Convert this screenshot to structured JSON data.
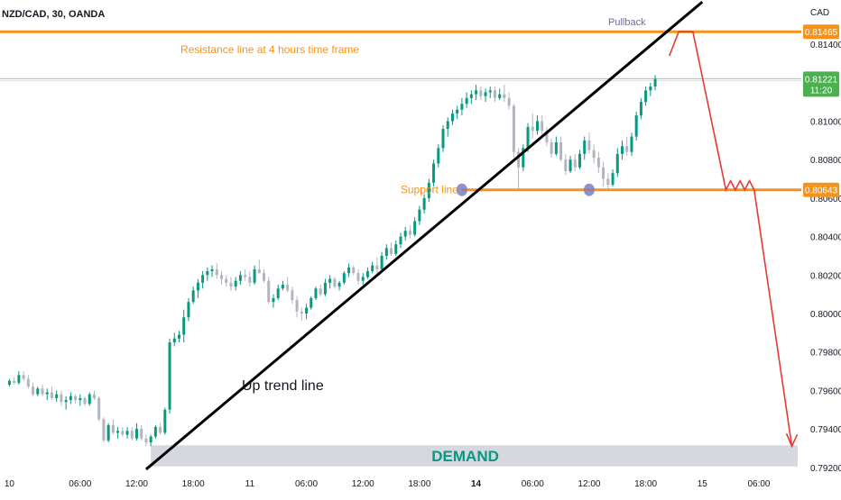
{
  "header": {
    "symbol": "NZD/CAD, 30, OANDA",
    "currency": "CAD"
  },
  "colors": {
    "up": "#089981",
    "down": "#b2b5be",
    "resistance": "#f7931a",
    "support": "#f7931a",
    "trendline": "#000000",
    "projection": "#e53935",
    "demand_zone": "#d1d4dc",
    "demand_text": "#089981",
    "price_line": "#4caf50",
    "pivot_marker": "#7e7fb8",
    "axis_text": "#131722",
    "price_badge": "#4caf50",
    "level_badge": "#f7931a"
  },
  "chart_data": {
    "type": "candlestick",
    "symbol": "NZD/CAD",
    "timeframe": "30",
    "source": "OANDA",
    "currency": "CAD",
    "y_ticks": [
      "0.81400",
      "0.81000",
      "0.80800",
      "0.80600",
      "0.80400",
      "0.80200",
      "0.80000",
      "0.79800",
      "0.79600",
      "0.79400",
      "0.79200"
    ],
    "y_tick_values": [
      0.814,
      0.81,
      0.808,
      0.806,
      0.804,
      0.802,
      0.8,
      0.798,
      0.796,
      0.794,
      0.792
    ],
    "ylim": [
      0.79185,
      0.8163
    ],
    "x_ticks": [
      "10",
      "06:00",
      "12:00",
      "18:00",
      "11",
      "06:00",
      "12:00",
      "18:00",
      "14",
      "06:00",
      "12:00",
      "18:00",
      "15",
      "06:00"
    ],
    "x_tick_index": [
      0,
      15,
      27,
      39,
      51,
      63,
      75,
      87,
      99,
      111,
      123,
      135,
      147,
      159
    ],
    "bold_x_ticks": [
      "14"
    ],
    "x_range": [
      -2,
      168
    ],
    "candle_count": 138,
    "candles_ohlc": [
      [
        0.7963,
        0.7966,
        0.7962,
        0.7965
      ],
      [
        0.7965,
        0.7967,
        0.7963,
        0.7964
      ],
      [
        0.7964,
        0.797,
        0.7963,
        0.7968
      ],
      [
        0.7968,
        0.797,
        0.7965,
        0.7966
      ],
      [
        0.7966,
        0.7968,
        0.7961,
        0.7962
      ],
      [
        0.7962,
        0.7964,
        0.7957,
        0.7958
      ],
      [
        0.7958,
        0.7962,
        0.7957,
        0.7961
      ],
      [
        0.7961,
        0.7963,
        0.7957,
        0.7958
      ],
      [
        0.7958,
        0.7961,
        0.7955,
        0.7959
      ],
      [
        0.7959,
        0.7962,
        0.7955,
        0.7956
      ],
      [
        0.7956,
        0.796,
        0.7954,
        0.7958
      ],
      [
        0.7958,
        0.796,
        0.7952,
        0.7954
      ],
      [
        0.7954,
        0.7957,
        0.795,
        0.7955
      ],
      [
        0.7955,
        0.7959,
        0.7953,
        0.7957
      ],
      [
        0.7957,
        0.7958,
        0.7953,
        0.7955
      ],
      [
        0.7955,
        0.7958,
        0.7952,
        0.7956
      ],
      [
        0.7956,
        0.7957,
        0.7952,
        0.7953
      ],
      [
        0.7953,
        0.7959,
        0.7952,
        0.7958
      ],
      [
        0.7958,
        0.796,
        0.7955,
        0.7956
      ],
      [
        0.7956,
        0.7957,
        0.7944,
        0.7945
      ],
      [
        0.7945,
        0.7946,
        0.7933,
        0.7934
      ],
      [
        0.7934,
        0.7943,
        0.7933,
        0.7942
      ],
      [
        0.7942,
        0.7945,
        0.7937,
        0.7938
      ],
      [
        0.7938,
        0.7941,
        0.7935,
        0.7939
      ],
      [
        0.7939,
        0.7941,
        0.7936,
        0.7937
      ],
      [
        0.7937,
        0.7941,
        0.7935,
        0.7939
      ],
      [
        0.7939,
        0.7941,
        0.7934,
        0.7935
      ],
      [
        0.7935,
        0.7943,
        0.7934,
        0.794
      ],
      [
        0.794,
        0.7942,
        0.7934,
        0.7935
      ],
      [
        0.7935,
        0.7937,
        0.7931,
        0.7933
      ],
      [
        0.7933,
        0.7937,
        0.7931,
        0.7936
      ],
      [
        0.7936,
        0.7942,
        0.7935,
        0.7941
      ],
      [
        0.7941,
        0.7943,
        0.7937,
        0.7938
      ],
      [
        0.7938,
        0.7951,
        0.7937,
        0.795
      ],
      [
        0.795,
        0.7987,
        0.7948,
        0.7985
      ],
      [
        0.7985,
        0.799,
        0.7983,
        0.7987
      ],
      [
        0.7987,
        0.7991,
        0.7985,
        0.7989
      ],
      [
        0.7989,
        0.8002,
        0.7985,
        0.7998
      ],
      [
        0.7998,
        0.8008,
        0.7996,
        0.8006
      ],
      [
        0.8006,
        0.8014,
        0.8005,
        0.8012
      ],
      [
        0.8012,
        0.8018,
        0.8008,
        0.8016
      ],
      [
        0.8016,
        0.8022,
        0.8013,
        0.802
      ],
      [
        0.802,
        0.8024,
        0.8017,
        0.8022
      ],
      [
        0.8022,
        0.8025,
        0.8019,
        0.8023
      ],
      [
        0.8023,
        0.8026,
        0.8018,
        0.802
      ],
      [
        0.802,
        0.8022,
        0.8015,
        0.8018
      ],
      [
        0.8018,
        0.802,
        0.8014,
        0.8016
      ],
      [
        0.8016,
        0.8019,
        0.8012,
        0.8014
      ],
      [
        0.8014,
        0.8019,
        0.8012,
        0.8017
      ],
      [
        0.8017,
        0.8022,
        0.8015,
        0.802
      ],
      [
        0.802,
        0.8023,
        0.8017,
        0.8019
      ],
      [
        0.8019,
        0.8022,
        0.8014,
        0.8016
      ],
      [
        0.8016,
        0.8025,
        0.8015,
        0.8023
      ],
      [
        0.8023,
        0.8028,
        0.8021,
        0.8021
      ],
      [
        0.8021,
        0.8023,
        0.8016,
        0.8017
      ],
      [
        0.8017,
        0.8019,
        0.8005,
        0.8006
      ],
      [
        0.8006,
        0.801,
        0.8003,
        0.8008
      ],
      [
        0.8008,
        0.8015,
        0.8007,
        0.8013
      ],
      [
        0.8013,
        0.8017,
        0.8012,
        0.8015
      ],
      [
        0.8015,
        0.8019,
        0.8011,
        0.8012
      ],
      [
        0.8012,
        0.8014,
        0.8005,
        0.8007
      ],
      [
        0.8007,
        0.8009,
        0.7998,
        0.8001
      ],
      [
        0.8001,
        0.8003,
        0.7996,
        0.8
      ],
      [
        0.8,
        0.8005,
        0.7997,
        0.8003
      ],
      [
        0.8003,
        0.8009,
        0.8002,
        0.8008
      ],
      [
        0.8008,
        0.8014,
        0.8007,
        0.8013
      ],
      [
        0.8013,
        0.8015,
        0.8009,
        0.801
      ],
      [
        0.801,
        0.8018,
        0.8009,
        0.8016
      ],
      [
        0.8016,
        0.802,
        0.8013,
        0.8018
      ],
      [
        0.8018,
        0.8019,
        0.8013,
        0.8014
      ],
      [
        0.8014,
        0.8017,
        0.8012,
        0.8016
      ],
      [
        0.8016,
        0.8022,
        0.8015,
        0.8021
      ],
      [
        0.8021,
        0.8026,
        0.8019,
        0.8024
      ],
      [
        0.8024,
        0.8025,
        0.802,
        0.8021
      ],
      [
        0.8021,
        0.8023,
        0.8015,
        0.8017
      ],
      [
        0.8017,
        0.8021,
        0.8015,
        0.8019
      ],
      [
        0.8019,
        0.8024,
        0.8018,
        0.8022
      ],
      [
        0.8022,
        0.8027,
        0.8021,
        0.8025
      ],
      [
        0.8025,
        0.8029,
        0.8021,
        0.8023
      ],
      [
        0.8023,
        0.8032,
        0.8022,
        0.803
      ],
      [
        0.803,
        0.8036,
        0.8028,
        0.8034
      ],
      [
        0.8034,
        0.8037,
        0.803,
        0.8031
      ],
      [
        0.8031,
        0.8038,
        0.803,
        0.8036
      ],
      [
        0.8036,
        0.8042,
        0.8034,
        0.804
      ],
      [
        0.804,
        0.8045,
        0.8038,
        0.8043
      ],
      [
        0.8043,
        0.8046,
        0.8039,
        0.8041
      ],
      [
        0.8041,
        0.805,
        0.804,
        0.8048
      ],
      [
        0.8048,
        0.8056,
        0.8046,
        0.8054
      ],
      [
        0.8054,
        0.8062,
        0.8052,
        0.806
      ],
      [
        0.806,
        0.807,
        0.8058,
        0.8068
      ],
      [
        0.8068,
        0.808,
        0.8066,
        0.8078
      ],
      [
        0.8078,
        0.8088,
        0.8076,
        0.8086
      ],
      [
        0.8086,
        0.8098,
        0.8084,
        0.8096
      ],
      [
        0.8096,
        0.8102,
        0.8092,
        0.81
      ],
      [
        0.81,
        0.8106,
        0.8098,
        0.8104
      ],
      [
        0.8104,
        0.8108,
        0.8101,
        0.8106
      ],
      [
        0.8106,
        0.8112,
        0.8103,
        0.8109
      ],
      [
        0.8109,
        0.8115,
        0.8107,
        0.8112
      ],
      [
        0.8112,
        0.8116,
        0.8109,
        0.8114
      ],
      [
        0.8114,
        0.8119,
        0.8111,
        0.8116
      ],
      [
        0.8116,
        0.8118,
        0.8111,
        0.8113
      ],
      [
        0.8113,
        0.8117,
        0.811,
        0.8115
      ],
      [
        0.8115,
        0.8118,
        0.8112,
        0.8116
      ],
      [
        0.8116,
        0.8118,
        0.811,
        0.8112
      ],
      [
        0.8112,
        0.8117,
        0.8111,
        0.8114
      ],
      [
        0.8114,
        0.8119,
        0.811,
        0.8112
      ],
      [
        0.8112,
        0.8115,
        0.8106,
        0.8108
      ],
      [
        0.8108,
        0.8109,
        0.8081,
        0.8084
      ],
      [
        0.8084,
        0.8086,
        0.8064,
        0.8076
      ],
      [
        0.8076,
        0.8088,
        0.8074,
        0.8086
      ],
      [
        0.8086,
        0.8099,
        0.8084,
        0.8097
      ],
      [
        0.8097,
        0.8104,
        0.8091,
        0.8095
      ],
      [
        0.8095,
        0.8103,
        0.8093,
        0.81
      ],
      [
        0.81,
        0.8103,
        0.8093,
        0.8095
      ],
      [
        0.8095,
        0.8097,
        0.8087,
        0.8089
      ],
      [
        0.8089,
        0.8091,
        0.8081,
        0.8083
      ],
      [
        0.8083,
        0.8092,
        0.8082,
        0.8089
      ],
      [
        0.8089,
        0.8092,
        0.8079,
        0.808
      ],
      [
        0.808,
        0.8083,
        0.8072,
        0.8074
      ],
      [
        0.8074,
        0.8082,
        0.8073,
        0.808
      ],
      [
        0.808,
        0.8083,
        0.8074,
        0.8076
      ],
      [
        0.8076,
        0.8085,
        0.8075,
        0.8083
      ],
      [
        0.8083,
        0.8092,
        0.808,
        0.809
      ],
      [
        0.809,
        0.8094,
        0.8083,
        0.8085
      ],
      [
        0.8085,
        0.8088,
        0.8078,
        0.8081
      ],
      [
        0.8081,
        0.8084,
        0.8073,
        0.8076
      ],
      [
        0.8076,
        0.8079,
        0.8066,
        0.807
      ],
      [
        0.807,
        0.8073,
        0.8064,
        0.8067
      ],
      [
        0.8067,
        0.8075,
        0.8066,
        0.8073
      ],
      [
        0.8073,
        0.8086,
        0.8071,
        0.8083
      ],
      [
        0.8083,
        0.809,
        0.808,
        0.8087
      ],
      [
        0.8087,
        0.8092,
        0.8082,
        0.8084
      ],
      [
        0.8084,
        0.8094,
        0.8082,
        0.8092
      ],
      [
        0.8092,
        0.8105,
        0.809,
        0.8103
      ],
      [
        0.8103,
        0.8112,
        0.8101,
        0.811
      ],
      [
        0.811,
        0.8118,
        0.8108,
        0.8116
      ],
      [
        0.8116,
        0.812,
        0.8113,
        0.8118
      ],
      [
        0.8118,
        0.8124,
        0.8116,
        0.8122
      ]
    ],
    "levels": {
      "resistance": 0.81465,
      "current": 0.81221,
      "support": 0.80643,
      "demand_top": 0.79315,
      "demand_bottom": 0.79205
    },
    "trendline": {
      "from": [
        29,
        0.7919
      ],
      "to": [
        147,
        0.8162
      ]
    },
    "pivots": [
      [
        96,
        0.80643
      ],
      [
        123,
        0.80643
      ]
    ],
    "projection_path": [
      [
        140,
        0.8134
      ],
      [
        142,
        0.81465
      ],
      [
        145,
        0.81465
      ],
      [
        152,
        0.80643
      ],
      [
        153,
        0.8069
      ],
      [
        154,
        0.80643
      ],
      [
        155,
        0.8069
      ],
      [
        156,
        0.80643
      ],
      [
        157,
        0.8069
      ],
      [
        158,
        0.80643
      ],
      [
        166,
        0.7931
      ]
    ],
    "annotations": {
      "resistance_label": "Resistance line at 4 hours time frame",
      "support_label": "Support line",
      "trend_label": "Up trend line",
      "pullback_label": "Pullback",
      "demand_label": "DEMAND"
    },
    "badges": {
      "resistance": "0.81465",
      "current_price": "0.81221",
      "countdown": "11:20",
      "support": "0.80643"
    }
  }
}
